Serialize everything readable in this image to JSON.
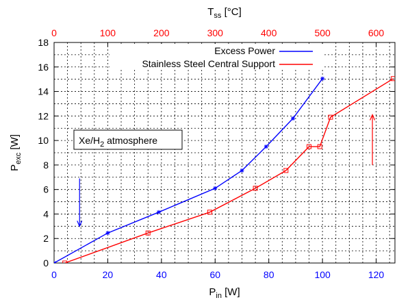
{
  "chart_data": {
    "type": "line",
    "bottom_axis": {
      "label_main": "P",
      "label_sub": "in",
      "label_unit": " [W]",
      "range": [
        0,
        127
      ],
      "ticks": [
        0,
        20,
        40,
        60,
        80,
        100,
        120
      ],
      "color": "#0000ff"
    },
    "top_axis": {
      "label_main": "T",
      "label_sub": "ss",
      "label_unit": " [°C]",
      "range": [
        0,
        635
      ],
      "ticks": [
        0,
        100,
        200,
        300,
        400,
        500,
        600
      ],
      "color": "#ff0000"
    },
    "left_axis": {
      "label_main": "P",
      "label_sub": "exc",
      "label_unit": " [W]",
      "range": [
        0,
        18
      ],
      "ticks": [
        0,
        2,
        4,
        6,
        8,
        10,
        12,
        14,
        16,
        18
      ]
    },
    "grid": true,
    "legend": {
      "placement": "top-right"
    },
    "annotation": {
      "text_main": "Xe/H",
      "text_sub": "2",
      "text_rest": " atmosphere"
    },
    "series": [
      {
        "name": "Excess Power",
        "axis": "bottom",
        "color": "#0000ff",
        "marker": "star",
        "x": [
          0,
          20,
          39,
          60,
          70,
          79,
          89,
          100
        ],
        "y": [
          0,
          2.45,
          4.15,
          6.1,
          7.55,
          9.5,
          11.8,
          15.05
        ]
      },
      {
        "name": "Stainless Steel Central Support",
        "axis": "top",
        "color": "#ff0000",
        "marker": "square",
        "x": [
          20,
          175,
          290,
          375,
          432,
          475,
          495,
          515,
          632
        ],
        "y": [
          0,
          2.45,
          4.15,
          6.1,
          7.55,
          9.5,
          9.5,
          11.9,
          15.05
        ]
      }
    ],
    "arrows": [
      {
        "color": "#0000ff",
        "x": 9.5,
        "axis": "bottom",
        "y_from": 6.9,
        "y_to": 3.0
      },
      {
        "color": "#ff0000",
        "x": 593,
        "axis": "top",
        "y_from": 8.0,
        "y_to": 12.1
      }
    ]
  }
}
